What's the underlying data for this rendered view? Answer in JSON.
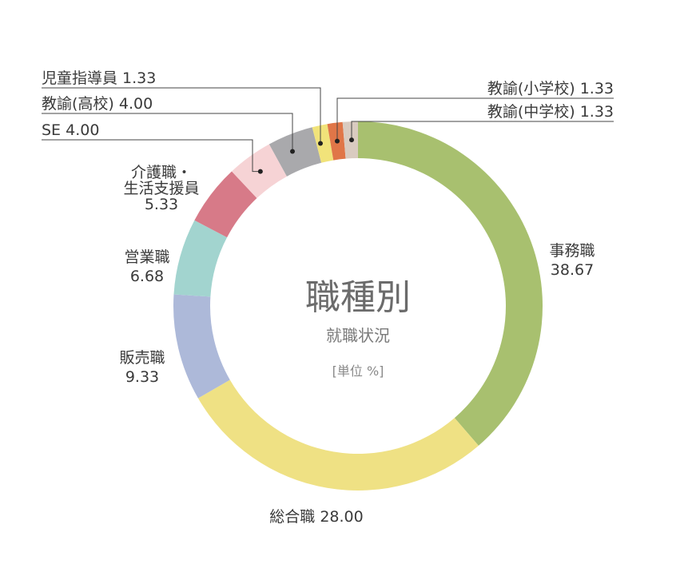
{
  "center": {
    "title": "職種別",
    "subtitle": "就職状況",
    "unit": "[単位 %]"
  },
  "chart_data": {
    "type": "pie",
    "variant": "donut",
    "title": "職種別",
    "subtitle": "就職状況",
    "unit": "%",
    "slices": [
      {
        "label": "事務職",
        "value": 38.67,
        "value_text": "38.67",
        "color": "#a8c06f"
      },
      {
        "label": "総合職",
        "value": 28.0,
        "value_text": "28.00",
        "color": "#efe184"
      },
      {
        "label": "販売職",
        "value": 9.33,
        "value_text": "9.33",
        "color": "#adb9d9"
      },
      {
        "label": "営業職",
        "value": 6.68,
        "value_text": "6.68",
        "color": "#a2d4cf"
      },
      {
        "label": "介護職・生活支援員",
        "label_lines": [
          "介護職・",
          "生活支援員"
        ],
        "value": 5.33,
        "value_text": "5.33",
        "color": "#d77a88"
      },
      {
        "label": "SE",
        "value": 4.0,
        "value_text": "4.00",
        "color": "#f6d3d5"
      },
      {
        "label": "教諭(高校)",
        "value": 4.0,
        "value_text": "4.00",
        "color": "#a9a9ac"
      },
      {
        "label": "児童指導員",
        "value": 1.33,
        "value_text": "1.33",
        "color": "#f1e37a"
      },
      {
        "label": "教諭(小学校)",
        "value": 1.33,
        "value_text": "1.33",
        "color": "#e07648"
      },
      {
        "label": "教諭(中学校)",
        "value": 1.33,
        "value_text": "1.33",
        "color": "#d9cbc0"
      }
    ]
  }
}
